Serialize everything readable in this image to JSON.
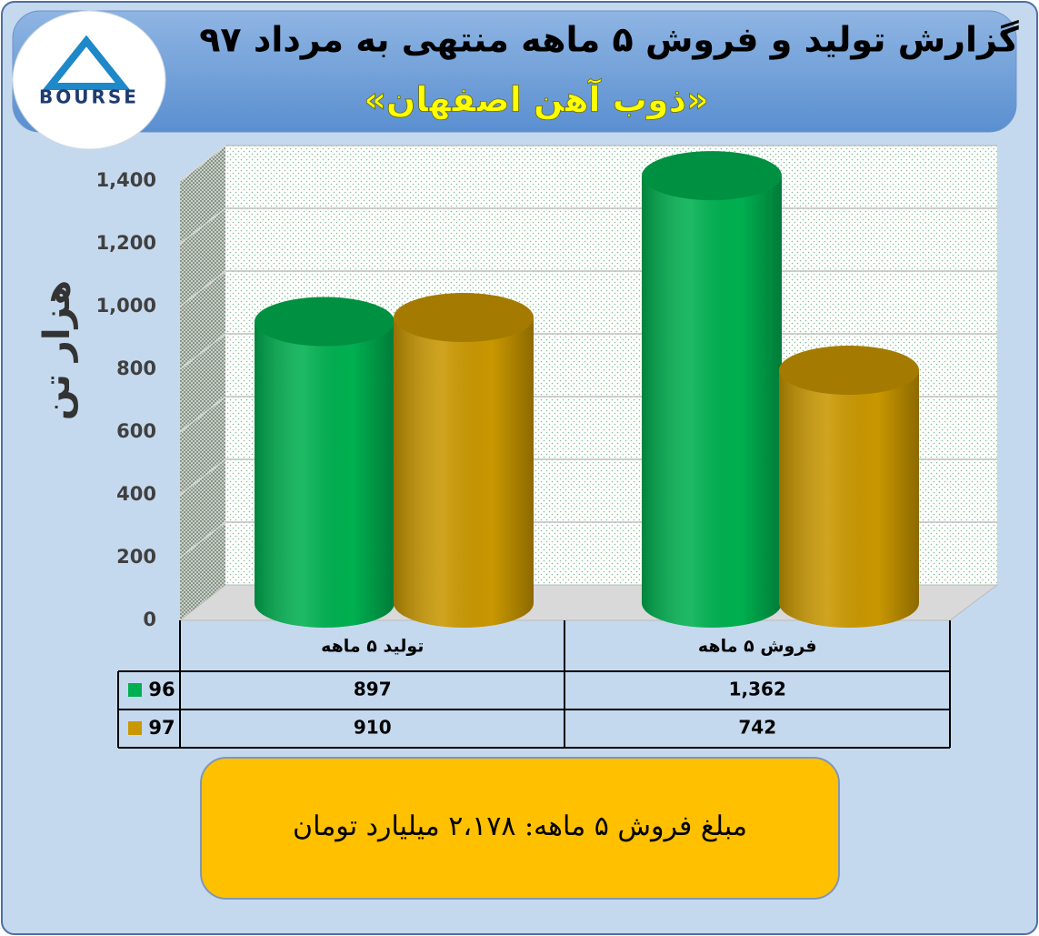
{
  "chart_data": {
    "type": "bar",
    "title": "گزارش تولید و فروش ۵ ماهه منتهی به مرداد ۹۷",
    "subtitle": "«ذوب آهن اصفهان»",
    "logo_text": "BOURSE",
    "y_label": "هزار تن",
    "categories": [
      "تولید ۵ ماهه",
      "فروش ۵ ماهه"
    ],
    "series": [
      {
        "name": "96",
        "color": "#00b050",
        "values": [
          897,
          1362
        ],
        "value_labels": [
          "897",
          "1,362"
        ]
      },
      {
        "name": "97",
        "color": "#c99700",
        "values": [
          910,
          742
        ],
        "value_labels": [
          "910",
          "742"
        ]
      }
    ],
    "ylim": [
      0,
      1400
    ],
    "yticks": [
      0,
      200,
      400,
      600,
      800,
      {
        "value": 1000,
        "label": "1,000"
      },
      {
        "value": 1200,
        "label": "1,200"
      },
      {
        "value": 1400,
        "label": "1,400"
      }
    ],
    "grid": true,
    "annotation": "مبلغ فروش ۵ ماهه: ۲،۱۷۸ میلیارد تومان"
  }
}
